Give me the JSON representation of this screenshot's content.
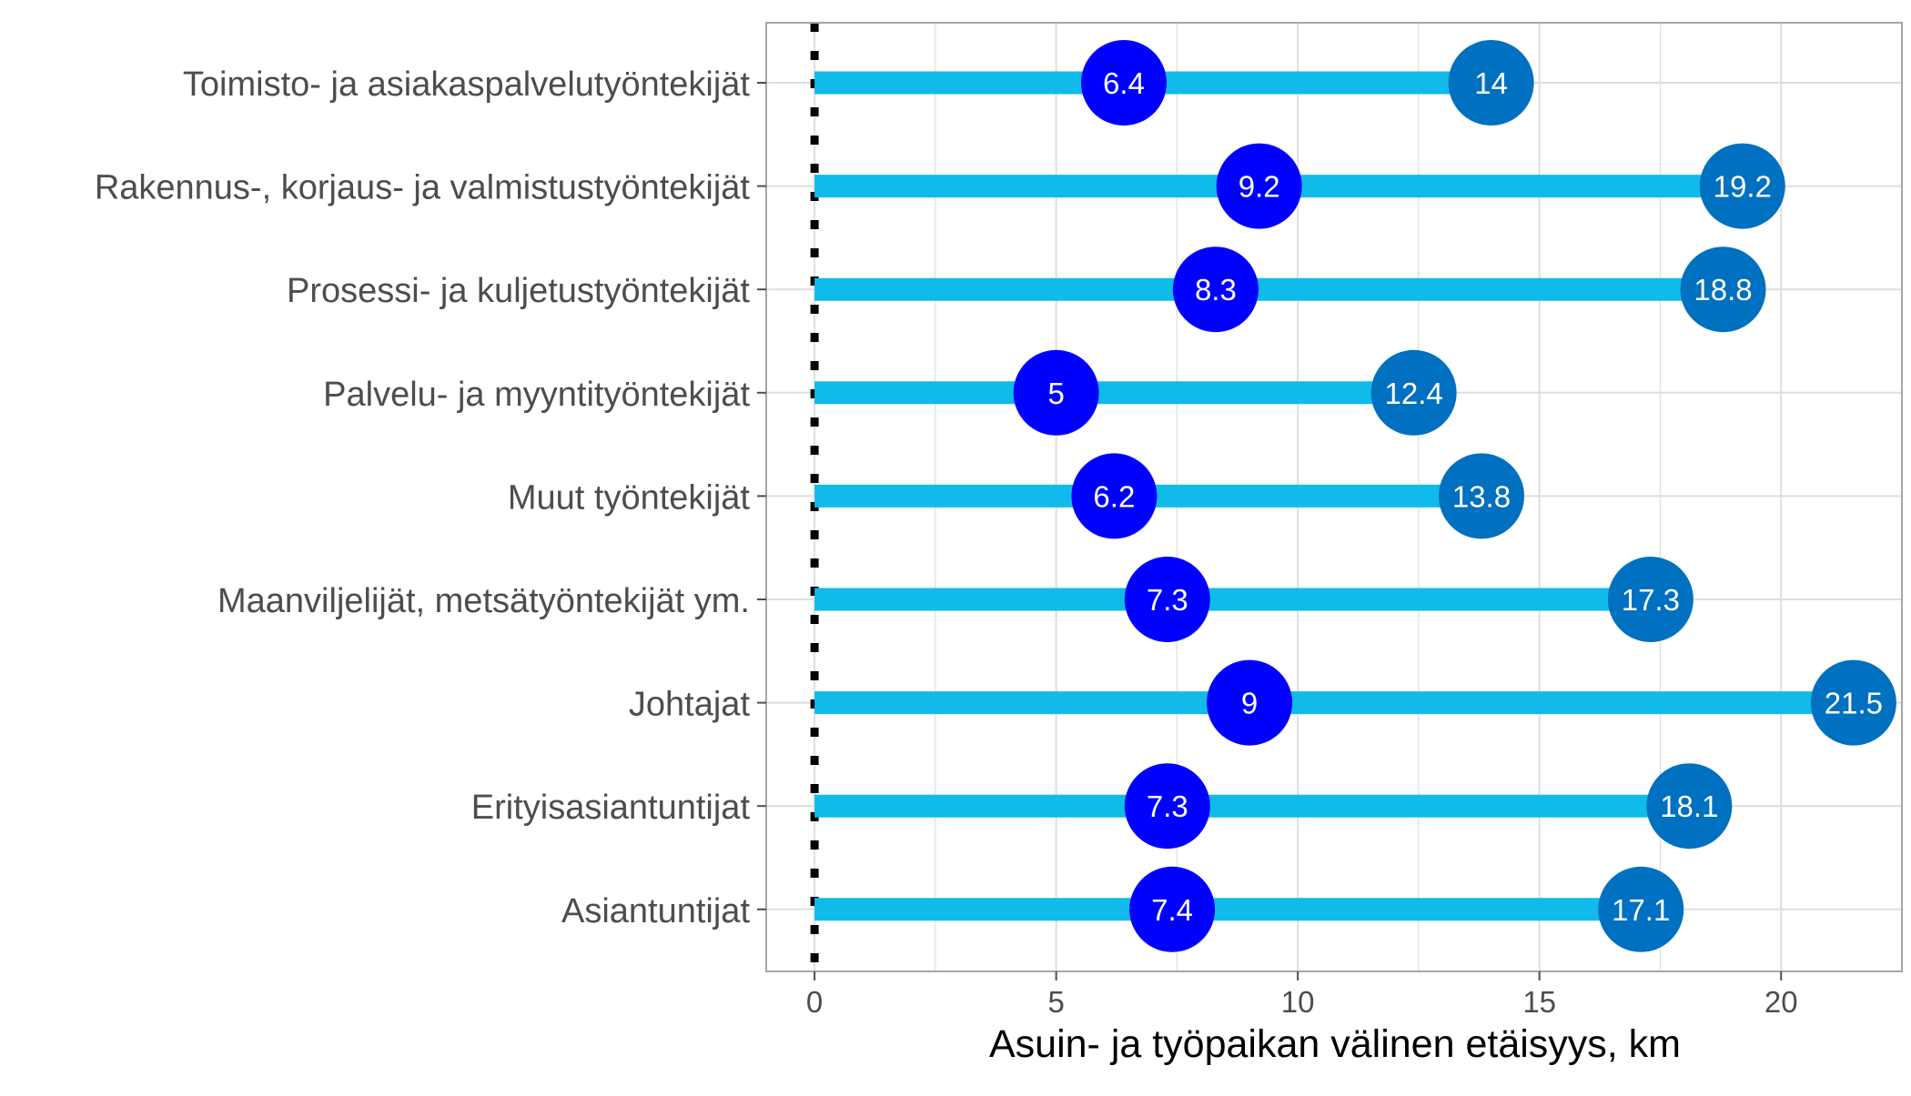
{
  "chart_data": {
    "type": "dumbbell",
    "xlabel": "Asuin- ja työpaikan välinen etäisyys, km",
    "xlim": [
      -1,
      22.5
    ],
    "x_ticks": [
      0,
      5,
      10,
      15,
      20
    ],
    "x_tick_labels": [
      "0",
      "5",
      "10",
      "15",
      "20"
    ],
    "grid": true,
    "reference_line_x": 0,
    "categories": [
      "Toimisto- ja asiakaspalvelutyöntekijät",
      "Rakennus-, korjaus- ja valmistustyöntekijät",
      "Prosessi- ja kuljetustyöntekijät",
      "Palvelu- ja myyntityöntekijät",
      "Muut työntekijät",
      "Maanviljelijät, metsätyöntekijät ym.",
      "Johtajat",
      "Erityisasiantuntijat",
      "Asiantuntijat"
    ],
    "series": [
      {
        "values": [
          6.4,
          9.2,
          8.3,
          5,
          6.2,
          7.3,
          9,
          7.3,
          7.4
        ],
        "labels": [
          "6.4",
          "9.2",
          "8.3",
          "5",
          "6.2",
          "7.3",
          "9",
          "7.3",
          "7.4"
        ],
        "color": "#0000ff"
      },
      {
        "values": [
          14,
          19.2,
          18.8,
          12.4,
          13.8,
          17.3,
          21.5,
          18.1,
          17.1
        ],
        "labels": [
          "14",
          "19.2",
          "18.8",
          "12.4",
          "13.8",
          "17.3",
          "21.5",
          "18.1",
          "17.1"
        ],
        "color": "#0070c0"
      }
    ],
    "colors": {
      "segment": "#10bbea",
      "reference_line": "#000000",
      "grid": "#dedede",
      "panel_border": "#a6a6a6",
      "axis_text": "#4d4d4d",
      "point_label": "#ffffff"
    }
  }
}
